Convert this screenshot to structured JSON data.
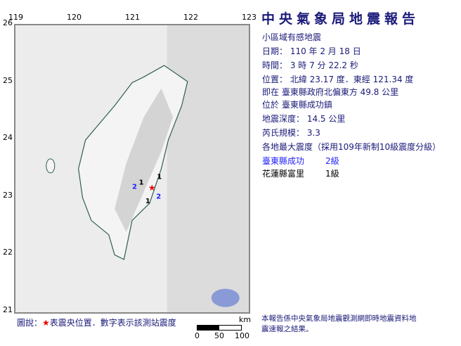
{
  "header": {
    "title": "中央氣象局地震報告"
  },
  "report": {
    "type": "小區域有感地震",
    "date": "日期： 110 年 2 月 18 日",
    "time": "時間： 3 時 7 分 22.2 秒",
    "position": "位置： 北緯 23.17 度．東經 121.34 度",
    "relative": "即在 臺東縣政府北偏東方 49.8 公里",
    "located": "位於 臺東縣成功鎮",
    "depth": "地震深度： 14.5 公里",
    "magnitude": "芮氏規模： 3.3",
    "intensity_header": "各地最大震度（採用109年新制10級震度分級）",
    "stations": [
      {
        "name": "臺東縣成功",
        "level": "2級",
        "color": "#1f1fff"
      },
      {
        "name": "花蓮縣富里",
        "level": "1級",
        "color": "#000000"
      }
    ]
  },
  "map": {
    "lon_ticks": [
      "119",
      "120",
      "121",
      "122",
      "123"
    ],
    "lat_ticks": [
      "26",
      "25",
      "24",
      "23",
      "22",
      "21"
    ],
    "epicenter": {
      "lat": 23.17,
      "lon": 121.34,
      "icon": "red-star"
    },
    "station_marks": [
      {
        "label": "1",
        "lon": 121.42,
        "lat": 23.32
      },
      {
        "label": "2",
        "lon": 121.18,
        "lat": 23.15
      },
      {
        "label": "1",
        "lon": 121.26,
        "lat": 23.19
      },
      {
        "label": "2",
        "lon": 121.34,
        "lat": 23.08
      },
      {
        "label": "1",
        "lon": 121.27,
        "lat": 22.95
      }
    ],
    "scale": {
      "unit": "km",
      "labels": [
        "0",
        "50",
        "100"
      ]
    }
  },
  "legend": {
    "prefix": "圖說：",
    "star": "★",
    "text": "表震央位置．數字表示該測站震度"
  },
  "footer": {
    "note": "本報告係中央氣象局地震觀測網即時地震資料地震速報之結果。"
  }
}
